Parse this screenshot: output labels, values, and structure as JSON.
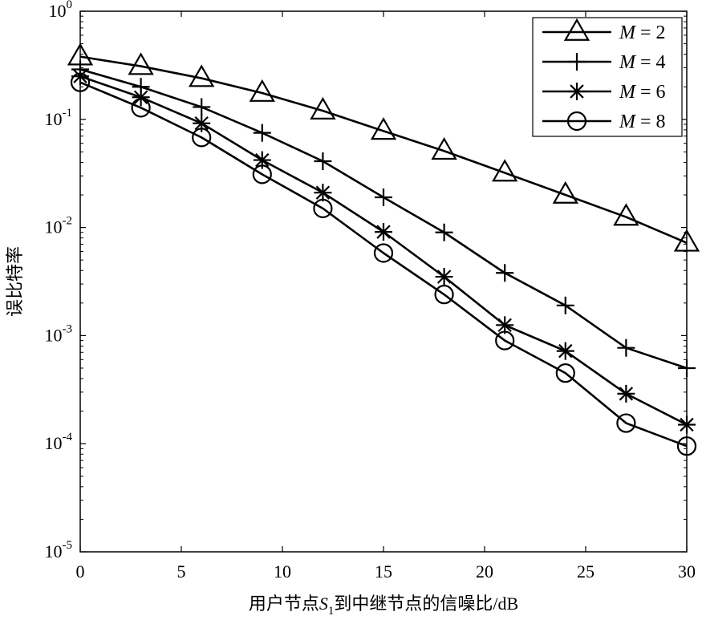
{
  "chart_data": {
    "type": "line",
    "xlabel_parts": {
      "prefix": "用户节点",
      "var": "S",
      "sub": "1",
      "suffix": "到中继节点的信噪比/dB"
    },
    "ylabel": "误比特率",
    "x": [
      0,
      3,
      6,
      9,
      12,
      15,
      18,
      21,
      24,
      27,
      30
    ],
    "xlim": [
      0,
      30
    ],
    "ylim": [
      1e-05,
      1
    ],
    "yscale": "log",
    "x_ticks": [
      "0",
      "5",
      "10",
      "15",
      "20",
      "25",
      "30"
    ],
    "y_ticks": [
      {
        "base": "10",
        "exp": "0"
      },
      {
        "base": "10",
        "exp": "-1"
      },
      {
        "base": "10",
        "exp": "-2"
      },
      {
        "base": "10",
        "exp": "-3"
      },
      {
        "base": "10",
        "exp": "-4"
      },
      {
        "base": "10",
        "exp": "-5"
      }
    ],
    "legend_position": "top-right",
    "grid": false,
    "series": [
      {
        "name": "M = 2",
        "label_var": "M",
        "label_rest": " = 2",
        "marker": "triangle",
        "values": [
          0.38,
          0.31,
          0.24,
          0.175,
          0.12,
          0.078,
          0.051,
          0.032,
          0.02,
          0.0125,
          0.0072
        ]
      },
      {
        "name": "M = 4",
        "label_var": "M",
        "label_rest": " = 4",
        "marker": "plus",
        "values": [
          0.29,
          0.2,
          0.13,
          0.075,
          0.041,
          0.019,
          0.009,
          0.0038,
          0.0019,
          0.00077,
          0.0005
        ]
      },
      {
        "name": "M = 6",
        "label_var": "M",
        "label_rest": " = 6",
        "marker": "asterisk",
        "values": [
          0.25,
          0.16,
          0.092,
          0.042,
          0.021,
          0.0091,
          0.0035,
          0.00125,
          0.00072,
          0.00029,
          0.00015
        ]
      },
      {
        "name": "M = 8",
        "label_var": "M",
        "label_rest": " = 8",
        "marker": "circle",
        "values": [
          0.22,
          0.128,
          0.068,
          0.031,
          0.015,
          0.0058,
          0.0024,
          0.0009,
          0.00045,
          0.000155,
          9.5e-05
        ]
      }
    ]
  }
}
